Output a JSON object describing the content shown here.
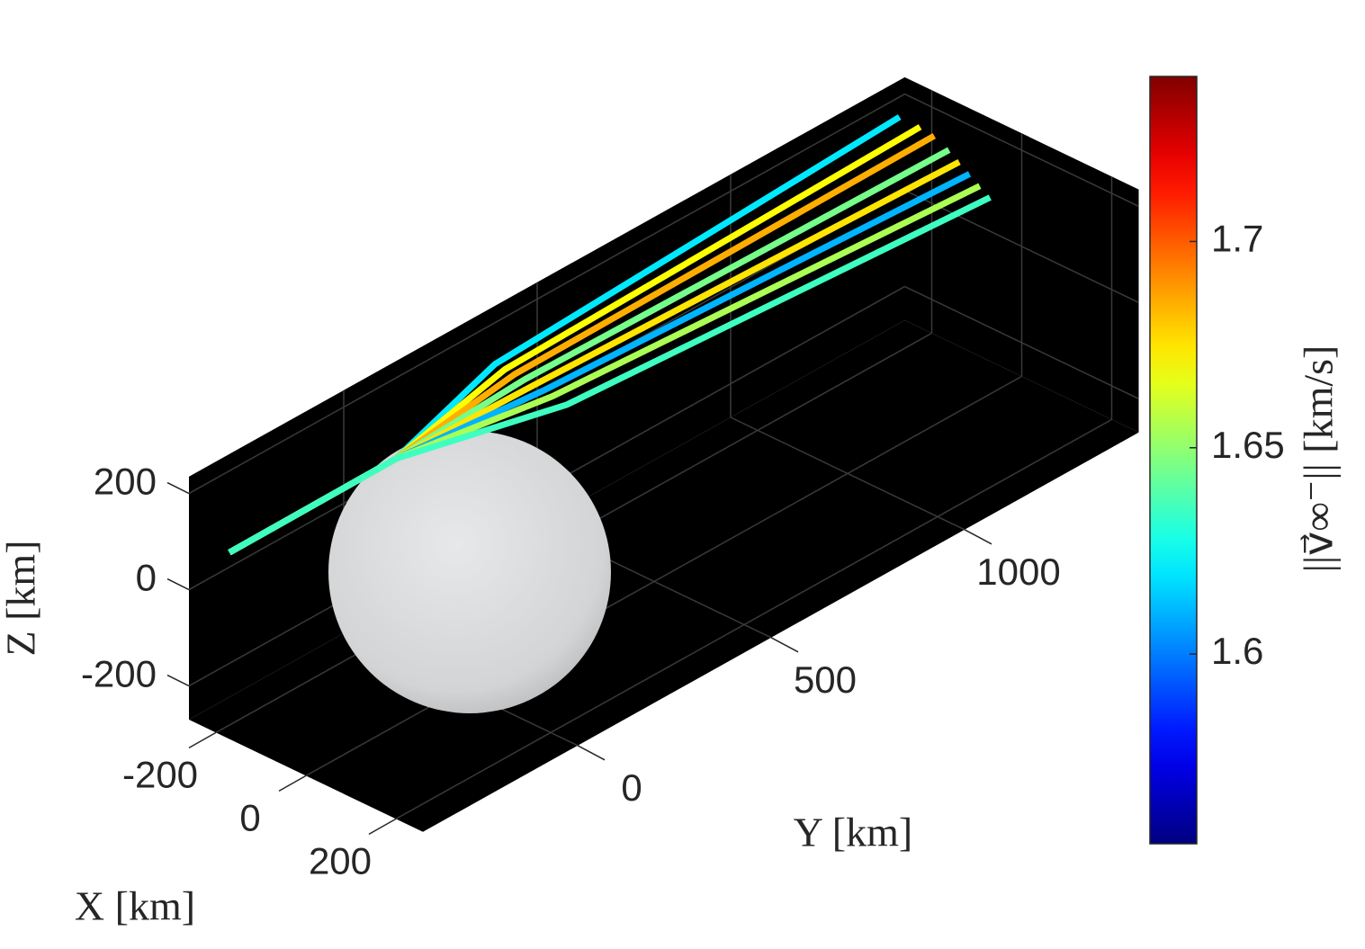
{
  "chart_data": {
    "type": "line3d",
    "xlabel": "X [km]",
    "ylabel": "Y [km]",
    "zlabel": "Z [km]",
    "colorbar_label": "||v⃗∞⁻|| [km/s]",
    "xlim": [
      -260,
      260
    ],
    "ylim": [
      -400,
      1450
    ],
    "zlim": [
      -270,
      235
    ],
    "xticks": [
      -200,
      0,
      200
    ],
    "yticks": [
      0,
      500,
      1000
    ],
    "zticks": [
      -200,
      0,
      200
    ],
    "clim": [
      1.554,
      1.74
    ],
    "cticks": [
      1.6,
      1.65,
      1.7
    ],
    "colormap": "jet",
    "grid": true,
    "series": [
      {
        "value": 1.62,
        "x": [
          -250,
          -150,
          -200,
          -250
        ],
        "y": [
          -307,
          7,
          321,
          1425
        ],
        "z": [
          40,
          139,
          172,
          168
        ]
      },
      {
        "value": 1.67,
        "x": [
          -250,
          -150,
          -180,
          -200
        ],
        "y": [
          -307,
          7,
          323,
          1420
        ],
        "z": [
          40,
          139,
          169,
          172
        ]
      },
      {
        "value": 1.685,
        "x": [
          -250,
          -150,
          -160,
          -160
        ],
        "y": [
          -307,
          7,
          325,
          1410
        ],
        "z": [
          40,
          139,
          167,
          176
        ]
      },
      {
        "value": 1.645,
        "x": [
          -250,
          -150,
          -140,
          -110
        ],
        "y": [
          -307,
          7,
          327,
          1390
        ],
        "z": [
          40,
          139,
          164,
          178
        ]
      },
      {
        "value": 1.675,
        "x": [
          -250,
          -150,
          -120,
          -70
        ],
        "y": [
          -307,
          7,
          328,
          1370
        ],
        "z": [
          40,
          139,
          161,
          180
        ]
      },
      {
        "value": 1.61,
        "x": [
          -250,
          -150,
          -100,
          -30
        ],
        "y": [
          -307,
          7,
          330,
          1350
        ],
        "z": [
          40,
          139,
          158,
          182
        ]
      },
      {
        "value": 1.655,
        "x": [
          -250,
          -150,
          -80,
          10
        ],
        "y": [
          -307,
          7,
          331,
          1330
        ],
        "z": [
          40,
          139,
          155,
          184
        ]
      },
      {
        "value": 1.635,
        "x": [
          -250,
          -150,
          -50,
          50
        ],
        "y": [
          -307,
          7,
          333,
          1310
        ],
        "z": [
          40,
          139,
          150,
          187
        ]
      }
    ]
  }
}
